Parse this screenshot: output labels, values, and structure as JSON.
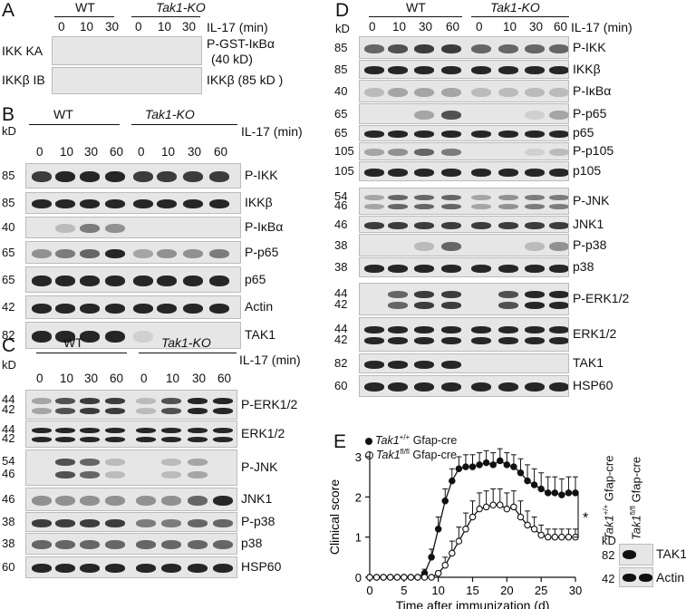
{
  "panels": {
    "A": {
      "letter": "A",
      "groups": [
        "WT",
        "Tak1-KO"
      ],
      "treatment": "IL-17 (min)",
      "timepoints": [
        "0",
        "10",
        "30",
        "0",
        "10",
        "30"
      ],
      "row_left_labels": [
        "IKK KA",
        "IKKβ IB"
      ],
      "row_right_labels": [
        "P-GST-IκBα",
        "(40 kD)",
        "IKKβ (85 kD )"
      ]
    },
    "B": {
      "letter": "B",
      "groups": [
        "WT",
        "Tak1-KO"
      ],
      "treatment": "IL-17 (min)",
      "kd": "kD",
      "timepoints": [
        "0",
        "10",
        "30",
        "60",
        "0",
        "10",
        "30",
        "60"
      ],
      "rows": [
        {
          "mw": "85",
          "label": "P-IKK"
        },
        {
          "mw": "85",
          "label": "IKKβ"
        },
        {
          "mw": "40",
          "label": "P-IκBα"
        },
        {
          "mw": "65",
          "label": "P-p65"
        },
        {
          "mw": "65",
          "label": "p65"
        },
        {
          "mw": "42",
          "label": "Actin"
        },
        {
          "mw": "82",
          "label": "TAK1"
        }
      ]
    },
    "C": {
      "letter": "C",
      "groups": [
        "WT",
        "Tak1-KO"
      ],
      "treatment": "IL-17 (min)",
      "kd": "kD",
      "timepoints": [
        "0",
        "10",
        "30",
        "60",
        "0",
        "10",
        "30",
        "60"
      ],
      "rows": [
        {
          "mw": [
            "44",
            "42"
          ],
          "label": "P-ERK1/2"
        },
        {
          "mw": [
            "44",
            "42"
          ],
          "label": "ERK1/2"
        },
        {
          "mw": [
            "54",
            "46"
          ],
          "label": "P-JNK"
        },
        {
          "mw": [
            "46"
          ],
          "label": "JNK1"
        },
        {
          "mw": [
            "38"
          ],
          "label": "P-p38"
        },
        {
          "mw": [
            "38"
          ],
          "label": "p38"
        },
        {
          "mw": [
            "60"
          ],
          "label": "HSP60"
        }
      ]
    },
    "D": {
      "letter": "D",
      "groups": [
        "WT",
        "Tak1-KO"
      ],
      "treatment": "IL-17 (min)",
      "kd": "kD",
      "timepoints": [
        "0",
        "10",
        "30",
        "60",
        "0",
        "10",
        "30",
        "60"
      ],
      "rows": [
        {
          "mw": [
            "85"
          ],
          "label": "P-IKK"
        },
        {
          "mw": [
            "85"
          ],
          "label": "IKKβ"
        },
        {
          "mw": [
            "40"
          ],
          "label": "P-IκBα"
        },
        {
          "mw": [
            "65"
          ],
          "label": "P-p65"
        },
        {
          "mw": [
            "65"
          ],
          "label": "p65"
        },
        {
          "mw": [
            "105"
          ],
          "label": "P-p105"
        },
        {
          "mw": [
            "105"
          ],
          "label": "p105"
        },
        {
          "mw": [
            "54",
            "46"
          ],
          "label": "P-JNK"
        },
        {
          "mw": [
            "46"
          ],
          "label": "JNK1"
        },
        {
          "mw": [
            "38"
          ],
          "label": "P-p38"
        },
        {
          "mw": [
            "38"
          ],
          "label": "p38"
        },
        {
          "mw": [
            "44",
            "42"
          ],
          "label": "P-ERK1/2"
        },
        {
          "mw": [
            "44",
            "42"
          ],
          "label": "ERK1/2"
        },
        {
          "mw": [
            "82"
          ],
          "label": "TAK1"
        },
        {
          "mw": [
            "60"
          ],
          "label": "HSP60"
        }
      ]
    },
    "E": {
      "letter": "E",
      "legend": [
        {
          "genotype": "Tak1",
          "sup": "+/+",
          "suffix": " Gfap-cre",
          "marker": "filled"
        },
        {
          "genotype": "Tak1",
          "sup": "fl/fl",
          "suffix": " Gfap-cre",
          "marker": "open"
        }
      ],
      "significance": "*",
      "blot": {
        "lanes": [
          {
            "genotype": "Tak1",
            "sup": "+/+",
            "suffix": " Gfap-cre"
          },
          {
            "genotype": "Tak1",
            "sup": "fl/fl",
            "suffix": " Gfap-cre"
          }
        ],
        "kd": "kD",
        "rows": [
          {
            "mw": "82",
            "label": "TAK1"
          },
          {
            "mw": "42",
            "label": "Actin"
          }
        ]
      }
    }
  },
  "chart_data": {
    "type": "line",
    "title": "",
    "xlabel": "Time after immunization (d)",
    "ylabel": "Clinical score",
    "xlim": [
      0,
      30
    ],
    "ylim": [
      0,
      3
    ],
    "xticks": [
      0,
      5,
      10,
      15,
      20,
      25,
      30
    ],
    "yticks": [
      0,
      1,
      2,
      3
    ],
    "grid": false,
    "series": [
      {
        "name": "Tak1+/+ Gfap-cre",
        "marker": "filled",
        "x": [
          0,
          1,
          2,
          3,
          4,
          5,
          6,
          7,
          8,
          9,
          10,
          11,
          12,
          13,
          14,
          15,
          16,
          17,
          18,
          19,
          20,
          21,
          22,
          23,
          24,
          25,
          26,
          27,
          28,
          29,
          30
        ],
        "y": [
          0,
          0,
          0,
          0,
          0,
          0,
          0,
          0,
          0.1,
          0.5,
          1.2,
          1.9,
          2.4,
          2.7,
          2.75,
          2.75,
          2.8,
          2.85,
          2.8,
          2.9,
          2.8,
          2.75,
          2.6,
          2.4,
          2.3,
          2.2,
          2.1,
          2.1,
          2.05,
          2.1,
          2.1
        ],
        "err": [
          0,
          0,
          0,
          0,
          0,
          0,
          0,
          0,
          0.1,
          0.2,
          0.3,
          0.3,
          0.3,
          0.3,
          0.3,
          0.3,
          0.3,
          0.3,
          0.3,
          0.3,
          0.3,
          0.3,
          0.35,
          0.4,
          0.4,
          0.4,
          0.4,
          0.4,
          0.4,
          0.4,
          0.4
        ]
      },
      {
        "name": "Tak1fl/fl Gfap-cre",
        "marker": "open",
        "x": [
          0,
          1,
          2,
          3,
          4,
          5,
          6,
          7,
          8,
          9,
          10,
          11,
          12,
          13,
          14,
          15,
          16,
          17,
          18,
          19,
          20,
          21,
          22,
          23,
          24,
          25,
          26,
          27,
          28,
          29,
          30
        ],
        "y": [
          0,
          0,
          0,
          0,
          0,
          0,
          0,
          0,
          0,
          0,
          0.1,
          0.3,
          0.6,
          0.9,
          1.2,
          1.5,
          1.7,
          1.75,
          1.8,
          1.8,
          1.7,
          1.75,
          1.5,
          1.3,
          1.2,
          1.05,
          1.0,
          1.0,
          1.0,
          1.0,
          1.0
        ],
        "err": [
          0,
          0,
          0,
          0,
          0,
          0,
          0,
          0,
          0,
          0,
          0.05,
          0.2,
          0.3,
          0.35,
          0.4,
          0.4,
          0.4,
          0.4,
          0.4,
          0.4,
          0.4,
          0.4,
          0.4,
          0.35,
          0.3,
          0.25,
          0.2,
          0.2,
          0.2,
          0.2,
          0.2
        ]
      }
    ]
  }
}
